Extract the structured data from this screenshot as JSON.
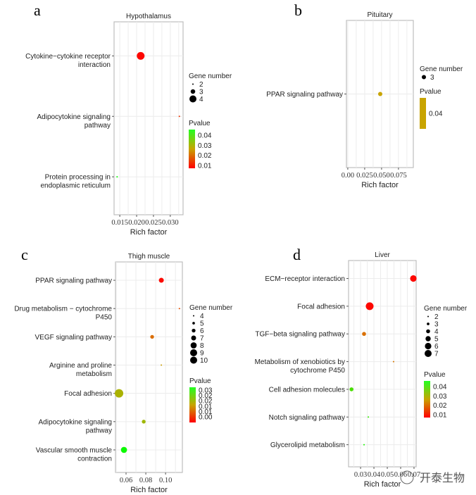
{
  "chart_data": [
    {
      "type": "scatter",
      "panel_label": "a",
      "title": "Hypothalamus",
      "xlabel": "Rich factor",
      "ylabel": "",
      "xlim": [
        0.0133,
        0.0338
      ],
      "xticks": [
        0.015,
        0.02,
        0.025,
        0.03
      ],
      "xtick_labels": [
        "0.015",
        "0.020",
        "0.025",
        "0.030"
      ],
      "grid": true,
      "categories": [
        "Cytokine−cytokine receptor interaction",
        "Adipocytokine signaling pathway",
        "Protein processing in endoplasmic reticulum"
      ],
      "category_lines": [
        [
          "Cytokine−cytokine receptor",
          "interaction"
        ],
        [
          "Adipocytokine signaling",
          "pathway"
        ],
        [
          "Protein processing in",
          "endoplasmic reticulum"
        ]
      ],
      "points": [
        {
          "pathway": "Cytokine−cytokine receptor interaction",
          "rich_factor": 0.0212,
          "gene_number": 4,
          "pvalue": 0.002
        },
        {
          "pathway": "Adipocytokine signaling pathway",
          "rich_factor": 0.0327,
          "gene_number": 2,
          "pvalue": 0.008
        },
        {
          "pathway": "Protein processing in endoplasmic reticulum",
          "rich_factor": 0.0142,
          "gene_number": 2,
          "pvalue": 0.045
        }
      ],
      "legend": {
        "size_title": "Gene number",
        "size_values": [
          2,
          3,
          4
        ],
        "color_title": "Pvalue",
        "color_ticks": [
          "0.04",
          "0.03",
          "0.02",
          "0.01"
        ],
        "color_range": [
          0.001,
          0.046
        ],
        "color_low": "#ff0000",
        "color_high": "#00ff00",
        "placement": "right"
      }
    },
    {
      "type": "scatter",
      "panel_label": "b",
      "title": "Pituitary",
      "xlabel": "Rich factor",
      "ylabel": "",
      "xlim": [
        -0.002,
        0.097
      ],
      "xticks": [
        0.0,
        0.025,
        0.05,
        0.075
      ],
      "xtick_labels": [
        "0.00",
        "0.025",
        "0.050",
        "0.075"
      ],
      "grid": true,
      "categories": [
        "PPAR signaling pathway"
      ],
      "category_lines": [
        [
          "PPAR signaling pathway"
        ]
      ],
      "points": [
        {
          "pathway": "PPAR signaling pathway",
          "rich_factor": 0.048,
          "gene_number": 3,
          "pvalue": 0.04
        }
      ],
      "legend": {
        "size_title": "Gene number",
        "size_values": [
          3
        ],
        "color_title": "Pvalue",
        "color_ticks": [
          "0.04"
        ],
        "single_color": "#c8a400",
        "placement": "right"
      }
    },
    {
      "type": "scatter",
      "panel_label": "c",
      "title": "Thigh muscle",
      "xlabel": "Rich factor",
      "ylabel": "",
      "xlim": [
        0.0493,
        0.117
      ],
      "xticks": [
        0.06,
        0.08,
        0.1
      ],
      "xtick_labels": [
        "0.06",
        "0.08",
        "0.10"
      ],
      "grid": true,
      "categories": [
        "PPAR signaling pathway",
        "Drug metabolism − cytochrome P450",
        "VEGF signaling pathway",
        "Arginine and proline metabolism",
        "Focal adhesion",
        "Adipocytokine signaling pathway",
        "Vascular smooth muscle contraction"
      ],
      "category_lines": [
        [
          "PPAR signaling pathway"
        ],
        [
          "Drug metabolism − cytochrome",
          "P450"
        ],
        [
          "VEGF signaling pathway"
        ],
        [
          "Arginine and proline",
          "metabolism"
        ],
        [
          "Focal adhesion"
        ],
        [
          "Adipocytokine signaling",
          "pathway"
        ],
        [
          "Vascular smooth muscle",
          "contraction"
        ]
      ],
      "points": [
        {
          "pathway": "PPAR signaling pathway",
          "rich_factor": 0.0957,
          "gene_number": 7,
          "pvalue": 0.001
        },
        {
          "pathway": "Drug metabolism − cytochrome P450",
          "rich_factor": 0.114,
          "gene_number": 4,
          "pvalue": 0.008
        },
        {
          "pathway": "VEGF signaling pathway",
          "rich_factor": 0.0864,
          "gene_number": 6,
          "pvalue": 0.011
        },
        {
          "pathway": "Arginine and proline metabolism",
          "rich_factor": 0.0957,
          "gene_number": 4,
          "pvalue": 0.016
        },
        {
          "pathway": "Focal adhesion",
          "rich_factor": 0.0529,
          "gene_number": 10,
          "pvalue": 0.019
        },
        {
          "pathway": "Adipocytokine signaling pathway",
          "rich_factor": 0.0779,
          "gene_number": 6,
          "pvalue": 0.02
        },
        {
          "pathway": "Vascular smooth muscle contraction",
          "rich_factor": 0.0579,
          "gene_number": 8,
          "pvalue": 0.032
        }
      ],
      "legend": {
        "size_title": "Gene number",
        "size_values": [
          4,
          5,
          6,
          7,
          8,
          9,
          10
        ],
        "color_title": "Pvalue",
        "color_ticks": [
          "0.03",
          "0.02",
          "0.02",
          "0.01",
          "0.01",
          "0.00"
        ],
        "color_range": [
          0.0,
          0.033
        ],
        "color_low": "#ff0000",
        "color_high": "#00ff00",
        "placement": "right"
      }
    },
    {
      "type": "scatter",
      "panel_label": "d",
      "title": "Liver",
      "xlabel": "Rich factor",
      "ylabel": "",
      "xlim": [
        0.021,
        0.0716
      ],
      "xticks": [
        0.03,
        0.04,
        0.05,
        0.06,
        0.07
      ],
      "xtick_labels": [
        "0.03",
        "0.04",
        "0.05",
        "0.06",
        "0.07"
      ],
      "grid": true,
      "categories": [
        "ECM−receptor interaction",
        "Focal adhesion",
        "TGF−beta signaling pathway",
        "Metabolism of xenobiotics by cytochrome P450",
        "Cell adhesion molecules",
        "Notch signaling pathway",
        "Glycerolipid metabolism"
      ],
      "category_lines": [
        [
          "ECM−receptor interaction"
        ],
        [
          "Focal adhesion"
        ],
        [
          "TGF−beta signaling pathway"
        ],
        [
          "Metabolism of xenobiotics by",
          "cytochrome P450"
        ],
        [
          "Cell adhesion molecules"
        ],
        [
          "Notch signaling pathway"
        ],
        [
          "Glycerolipid metabolism"
        ]
      ],
      "points": [
        {
          "pathway": "ECM−receptor interaction",
          "rich_factor": 0.0695,
          "gene_number": 6,
          "pvalue": 0.001
        },
        {
          "pathway": "Focal adhesion",
          "rich_factor": 0.0368,
          "gene_number": 7,
          "pvalue": 0.001
        },
        {
          "pathway": "TGF−beta signaling pathway",
          "rich_factor": 0.0326,
          "gene_number": 4,
          "pvalue": 0.017
        },
        {
          "pathway": "Metabolism of xenobiotics by cytochrome P450",
          "rich_factor": 0.0547,
          "gene_number": 2,
          "pvalue": 0.018
        },
        {
          "pathway": "Cell adhesion molecules",
          "rich_factor": 0.0232,
          "gene_number": 4,
          "pvalue": 0.041
        },
        {
          "pathway": "Notch signaling pathway",
          "rich_factor": 0.0358,
          "gene_number": 2,
          "pvalue": 0.044
        },
        {
          "pathway": "Glycerolipid metabolism",
          "rich_factor": 0.0326,
          "gene_number": 2,
          "pvalue": 0.047
        }
      ],
      "legend": {
        "size_title": "Gene number",
        "size_values": [
          2,
          3,
          4,
          5,
          6,
          7
        ],
        "color_title": "Pvalue",
        "color_ticks": [
          "0.04",
          "0.03",
          "0.02",
          "0.01"
        ],
        "color_range": [
          0.0,
          0.05
        ],
        "color_low": "#ff0000",
        "color_high": "#00ff00",
        "placement": "right"
      }
    }
  ],
  "watermark": "开泰生物"
}
